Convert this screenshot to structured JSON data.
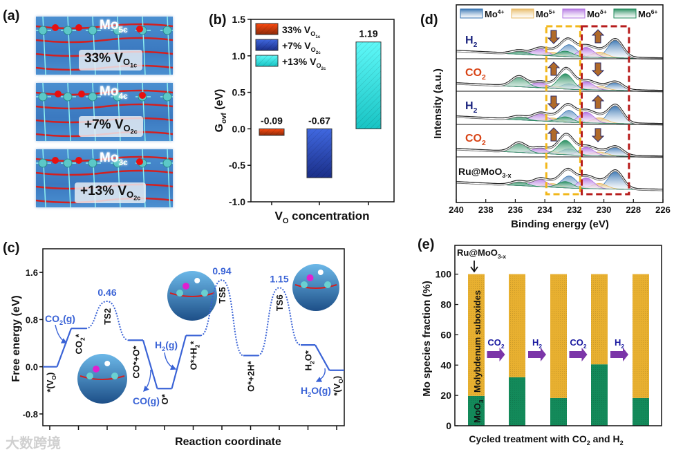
{
  "panels": {
    "a": "(a)",
    "b": "(b)",
    "c": "(c)",
    "d": "(d)",
    "e": "(e)"
  },
  "panel_a": {
    "structures": [
      {
        "site": "Mo",
        "site_sub": "5c",
        "label": "33% V",
        "label_sub": "O",
        "label_subsub": "1c"
      },
      {
        "site": "Mo",
        "site_sub": "4c",
        "label": "+7% V",
        "label_sub": "O",
        "label_subsub": "2c"
      },
      {
        "site": "Mo",
        "site_sub": "3c",
        "label": "+13% V",
        "label_sub": "O",
        "label_subsub": "2c"
      }
    ]
  },
  "watermark": "大数跨境",
  "chart_data": [
    {
      "id": "b",
      "type": "bar",
      "ylabel": "G",
      "ylabel_sub": "ovf",
      "ylabel_unit": " (eV)",
      "xlabel": "V",
      "xlabel_sub": "O",
      "xlabel_rest": " concentration",
      "ylim": [
        -1.0,
        1.5
      ],
      "yticks": [
        -1.0,
        -0.5,
        0.0,
        0.5,
        1.0,
        1.5
      ],
      "ytick_labels": [
        "-1.0",
        "-0.5",
        "0.0",
        "0.5",
        "1.0",
        "1.5"
      ],
      "legend": "top-left",
      "series": [
        {
          "name": "33% V",
          "sub": "O",
          "subsub": "1c",
          "value": -0.09,
          "label": "-0.09",
          "color_top": "#ff4a10",
          "color_bottom": "#8a2a0a"
        },
        {
          "name": "+7% V",
          "sub": "O",
          "subsub": "2c",
          "value": -0.67,
          "label": "-0.67",
          "color_top": "#4068e0",
          "color_bottom": "#1a2e88"
        },
        {
          "name": "+13% V",
          "sub": "O",
          "subsub": "2c",
          "value": 1.19,
          "label": "1.19",
          "color_top": "#5ff8f8",
          "color_bottom": "#18c4c4"
        }
      ]
    },
    {
      "id": "c",
      "type": "line",
      "ylabel": "Free energy (eV)",
      "xlabel": "Reaction coordinate",
      "ylim": [
        -1.0,
        2.0
      ],
      "yticks": [
        -0.8,
        0.0,
        0.8,
        1.6
      ],
      "ytick_labels": [
        "-0.8",
        "0.0",
        "0.8",
        "1.6"
      ],
      "xticks": [
        1,
        2,
        3,
        4,
        5,
        6,
        7,
        8,
        9,
        10,
        11
      ],
      "line_color": "#3a63d6",
      "states": [
        {
          "x": 1,
          "energy": 0.0,
          "kind": "level",
          "label": "*(V",
          "sub": "O",
          "tail": ")"
        },
        {
          "x": 2,
          "energy": 0.65,
          "kind": "level",
          "label": "CO",
          "sub": "2",
          "tail": "*"
        },
        {
          "x": 3,
          "energy": 1.11,
          "kind": "ts",
          "label": "TS2",
          "barrier": "0.46"
        },
        {
          "x": 4,
          "energy": 0.45,
          "kind": "level",
          "label": "CO*+O*"
        },
        {
          "x": 5,
          "energy": -0.37,
          "kind": "level",
          "label": "O*"
        },
        {
          "x": 6,
          "energy": 0.53,
          "kind": "level",
          "label": "O*+H",
          "sub": "2",
          "tail": "*"
        },
        {
          "x": 7,
          "energy": 1.47,
          "kind": "ts",
          "label": "TS5",
          "barrier": "0.94"
        },
        {
          "x": 8,
          "energy": 0.19,
          "kind": "level",
          "label": "O*+2H*"
        },
        {
          "x": 9,
          "energy": 1.34,
          "kind": "ts",
          "label": "TS6",
          "barrier": "1.15"
        },
        {
          "x": 10,
          "energy": 0.37,
          "kind": "level",
          "label": "H",
          "sub": "2",
          "tail": "O*"
        },
        {
          "x": 11,
          "energy": -0.06,
          "kind": "level",
          "label": "*(V",
          "sub": "O",
          "tail": ")"
        }
      ],
      "gas_annotations": [
        {
          "label": "CO",
          "sub": "2",
          "tail": "(g)"
        },
        {
          "label": "CO(g)"
        },
        {
          "label": "H",
          "sub": "2",
          "tail": "(g)"
        },
        {
          "label": "H",
          "sub": "2",
          "tail": "O(g)"
        }
      ]
    },
    {
      "id": "d",
      "type": "line",
      "subtype": "XPS spectra (stacked, fitted)",
      "ylabel": "Intensity (a.u.)",
      "xlabel": "Binding energy (eV)",
      "xlim": [
        240,
        226
      ],
      "xticks": [
        240,
        238,
        236,
        234,
        232,
        230,
        228,
        226
      ],
      "legend": "top",
      "components": [
        {
          "name": "Mo",
          "sup": "4+",
          "peak_3d52": 229.2,
          "color": "#2f6fb0"
        },
        {
          "name": "Mo",
          "sup": "5+",
          "peak_3d52": 230.3,
          "color": "#e8b860"
        },
        {
          "name": "Mo",
          "sup": "δ+",
          "peak_3d52": 231.2,
          "color": "#b070e0"
        },
        {
          "name": "Mo",
          "sup": "6+",
          "peak_3d52": 232.6,
          "color": "#1f8a5a"
        }
      ],
      "spectra": [
        {
          "label": "H",
          "sub": "2",
          "color": "#1a237e",
          "amplitudes": [
            1.0,
            0.3,
            0.55,
            0.3
          ],
          "arrows": [
            "down",
            "up"
          ]
        },
        {
          "label": "CO",
          "sub": "2",
          "color": "#d84315",
          "amplitudes": [
            0.45,
            0.2,
            0.45,
            0.85
          ],
          "arrows": [
            "up",
            "down"
          ]
        },
        {
          "label": "H",
          "sub": "2",
          "color": "#1a237e",
          "amplitudes": [
            1.0,
            0.3,
            0.6,
            0.3
          ],
          "arrows": [
            "down",
            "up"
          ]
        },
        {
          "label": "CO",
          "sub": "2",
          "color": "#d84315",
          "amplitudes": [
            0.5,
            0.2,
            0.45,
            0.8
          ],
          "arrows": [
            "up",
            "down"
          ]
        },
        {
          "label": "Ru@MoO",
          "sub": "3-x",
          "color": "#111111",
          "amplitudes": [
            1.0,
            0.3,
            0.6,
            0.35
          ],
          "arrows": []
        }
      ],
      "regions": [
        {
          "from": 233.9,
          "to": 231.6,
          "color": "#f2b71a"
        },
        {
          "from": 231.5,
          "to": 228.3,
          "color": "#b71c1c"
        }
      ]
    },
    {
      "id": "e",
      "type": "bar",
      "subtype": "stacked",
      "ylabel": "Mo species fraction (%)",
      "xlabel": "Cycled treatment with CO",
      "xlabel_sub": "2",
      "xlabel_rest": " and H",
      "xlabel_sub2": "2",
      "ylim": [
        0,
        119
      ],
      "yticks": [
        0,
        20,
        40,
        60,
        80,
        100
      ],
      "ytick_labels": [
        "0",
        "20",
        "40",
        "60",
        "80",
        "100"
      ],
      "categories": [
        "Ru@MoO3-x",
        "CO2",
        "H2",
        "CO2",
        "H2"
      ],
      "series": [
        {
          "name": "MoO",
          "sub": "3",
          "color": "#138a5a",
          "values": [
            19.7,
            32.0,
            18.3,
            40.5,
            18.3
          ]
        },
        {
          "name": "Molybdenum suboxides",
          "color": "#e8b030",
          "values": [
            80.3,
            68.0,
            81.7,
            59.5,
            81.7
          ]
        }
      ],
      "start_annotation": {
        "label": "Ru@MoO",
        "sub": "3-x"
      },
      "step_arrows": [
        {
          "label": "CO",
          "sub": "2"
        },
        {
          "label": "H",
          "sub": "2"
        },
        {
          "label": "CO",
          "sub": "2"
        },
        {
          "label": "H",
          "sub": "2"
        }
      ],
      "arrow_color": "#7b35a8"
    }
  ]
}
